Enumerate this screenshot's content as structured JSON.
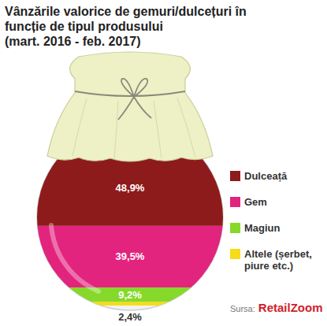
{
  "chart_data": {
    "type": "bar",
    "stacked": true,
    "title": "Vânzările valorice de gemuri/dulcețuri în funcție de tipul produsului",
    "subtitle": "(mart. 2016 - feb. 2017)",
    "categories": [
      "Dulceață",
      "Gem",
      "Magiun",
      "Altele (șerbet, piure etc.)"
    ],
    "values": [
      48.9,
      39.5,
      9.2,
      2.4
    ],
    "value_labels": [
      "48,9%",
      "39,5%",
      "9,2%",
      "2,4%"
    ],
    "colors": [
      "#8e1b1b",
      "#e2247e",
      "#86d92a",
      "#f6dc1a"
    ],
    "data_labels": true,
    "legend": "right",
    "tick_labels": false,
    "ylim": [
      0,
      100
    ],
    "source": {
      "label": "Sursa:",
      "name": "RetailZoom"
    }
  }
}
